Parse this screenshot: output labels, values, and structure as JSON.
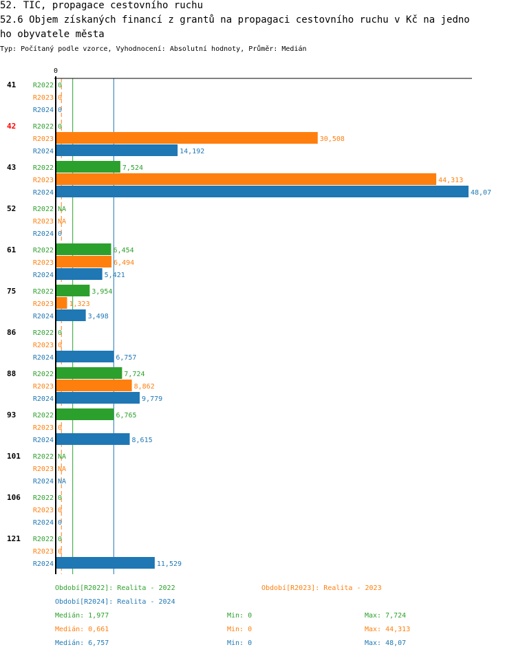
{
  "header": {
    "title_line1": "52. TIC, propagace cestovního ruchu",
    "title_line2": "52.6 Objem získaných financí z grantů na propagaci cestovního ruchu v Kč na jedno",
    "title_line3": "ho obyvatele města",
    "subtitle": "Typ: Počítaný podle vzorce, Vyhodnocení: Absolutní hodnoty, Průměr: Medián"
  },
  "colors": {
    "R2022": "#2ca02c",
    "R2023": "#ff7f0e",
    "R2024": "#1f77b4",
    "highlight": "#ff0000",
    "axis": "#000000"
  },
  "chart_data": {
    "type": "bar",
    "orientation": "horizontal",
    "title": "52.6 Objem získaných financí z grantů na propagaci cestovního ruchu v Kč na jednoho obyvatele města",
    "xlabel": "",
    "ylabel": "",
    "x_tick_labels": [
      "0"
    ],
    "xlim": [
      0,
      48.07
    ],
    "series_names": [
      "R2022",
      "R2023",
      "R2024"
    ],
    "categories": [
      "41",
      "42",
      "43",
      "52",
      "61",
      "75",
      "86",
      "88",
      "93",
      "101",
      "106",
      "121"
    ],
    "highlighted_category": "42",
    "series": [
      {
        "name": "R2022",
        "values": [
          0,
          0,
          7.524,
          null,
          6.454,
          3.954,
          0,
          7.724,
          6.765,
          null,
          0,
          0
        ],
        "labels": [
          "0",
          "0",
          "7,524",
          "NA",
          "6,454",
          "3,954",
          "0",
          "7,724",
          "6,765",
          "NA",
          "0",
          "0"
        ]
      },
      {
        "name": "R2023",
        "values": [
          0,
          30.508,
          44.313,
          null,
          6.494,
          1.323,
          0,
          8.862,
          0,
          null,
          0,
          0
        ],
        "labels": [
          "0",
          "30,508",
          "44,313",
          "NA",
          "6,494",
          "1,323",
          "0",
          "8,862",
          "0",
          "NA",
          "0",
          "0"
        ]
      },
      {
        "name": "R2024",
        "values": [
          0,
          14.192,
          48.07,
          0,
          5.421,
          3.498,
          6.757,
          9.779,
          8.615,
          null,
          0,
          11.529
        ],
        "labels": [
          "0",
          "14,192",
          "48,07",
          "0",
          "5,421",
          "3,498",
          "6,757",
          "9,779",
          "8,615",
          "NA",
          "0",
          "11,529"
        ]
      }
    ],
    "reference_lines": [
      {
        "series": "R2022",
        "stat": "median",
        "value": 1.977,
        "style": "solid"
      },
      {
        "series": "R2023",
        "stat": "median",
        "value": 0.661,
        "style": "dashed"
      },
      {
        "series": "R2024",
        "stat": "median",
        "value": 6.757,
        "style": "solid"
      }
    ],
    "legend_position": "bottom"
  },
  "legend": {
    "periods": [
      {
        "series": "R2022",
        "text": "Období[R2022]: Realita - 2022"
      },
      {
        "series": "R2023",
        "text": "Období[R2023]: Realita - 2023"
      },
      {
        "series": "R2024",
        "text": "Období[R2024]: Realita - 2024"
      }
    ],
    "stats": [
      {
        "series": "R2022",
        "median": "Medián: 1,977",
        "min": "Min: 0",
        "max": "Max: 7,724"
      },
      {
        "series": "R2023",
        "median": "Medián: 0,661",
        "min": "Min: 0",
        "max": "Max: 44,313"
      },
      {
        "series": "R2024",
        "median": "Medián: 6,757",
        "min": "Min: 0",
        "max": "Max: 48,07"
      }
    ]
  }
}
